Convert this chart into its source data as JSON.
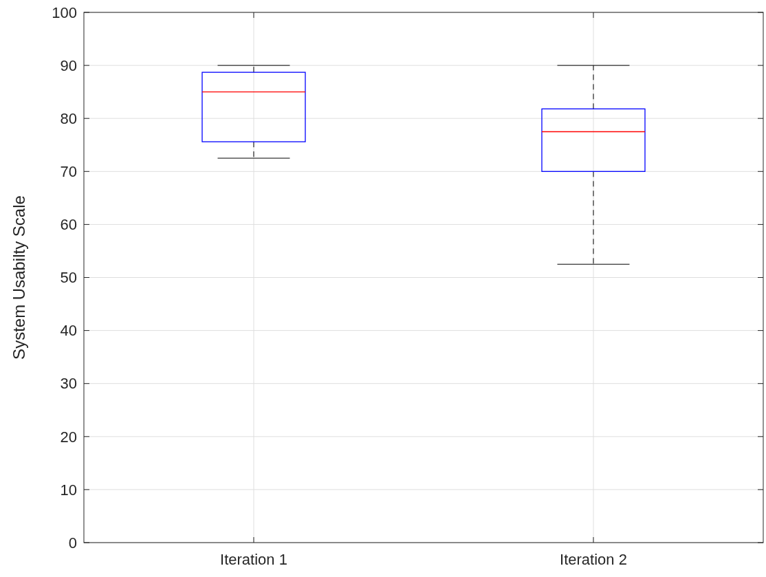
{
  "chart_data": {
    "type": "box",
    "ylabel": "System Usabilty Scale",
    "categories": [
      "Iteration 1",
      "Iteration 2"
    ],
    "boxes": [
      {
        "low": 72.5,
        "q1": 75.6,
        "median": 85,
        "q3": 88.7,
        "high": 90
      },
      {
        "low": 52.5,
        "q1": 70,
        "median": 77.5,
        "q3": 81.8,
        "high": 90
      }
    ],
    "color": "#0000ff",
    "ylim": [
      0,
      100
    ],
    "yticks": [
      0,
      10,
      20,
      30,
      40,
      50,
      60,
      70,
      80,
      90,
      100
    ],
    "grid": true
  }
}
